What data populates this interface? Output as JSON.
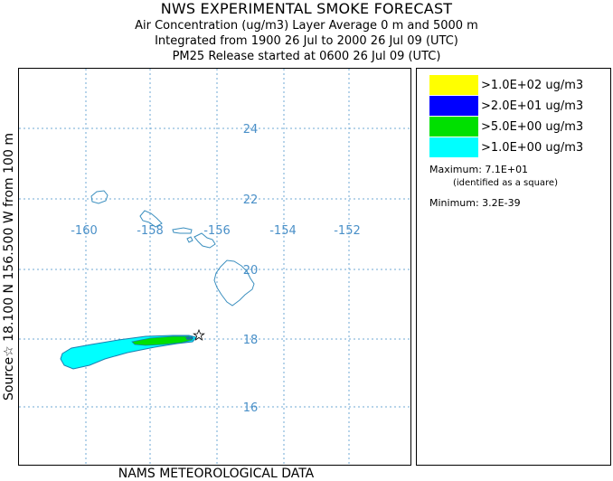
{
  "header": {
    "title": "NWS EXPERIMENTAL SMOKE FORECAST",
    "line1": "Air Concentration (ug/m3) Layer Average    0 m and  5000 m",
    "line2": "Integrated from 1900 26 Jul to 2000 26 Jul 09 (UTC)",
    "line3": "PM25 Release started at 0600 26 Jul 09 (UTC)"
  },
  "left_label": "Source☆ 18.100  N 156.500  W       from  100 m",
  "bottom_label": "NAMS METEOROLOGICAL DATA",
  "map": {
    "longitude_labels": [
      "-160",
      "-158",
      "-156",
      "-154",
      "-152"
    ],
    "latitude_labels": [
      "24",
      "22",
      "20",
      "18",
      "16"
    ],
    "source_marker": "star-icon",
    "grid_color": "#6fa9d6",
    "label_color": "#4a90c8",
    "coast_color": "#3b8fbf"
  },
  "legend": {
    "items": [
      {
        "label": ">1.0E+02 ug/m3",
        "color": "#ffff00"
      },
      {
        "label": ">2.0E+01 ug/m3",
        "color": "#0000ff"
      },
      {
        "label": ">5.0E+00 ug/m3",
        "color": "#00e000"
      },
      {
        "label": ">1.0E+00 ug/m3",
        "color": "#00ffff"
      }
    ],
    "maximum": "Maximum: 7.1E+01",
    "maximum_note": "(identified as a square)",
    "minimum": "Minimum: 3.2E-39"
  }
}
